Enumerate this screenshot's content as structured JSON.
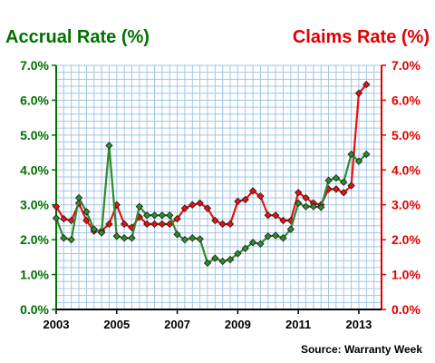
{
  "chart_data": {
    "type": "line",
    "title_left": "Accrual Rate (%)",
    "title_right": "Claims Rate (%)",
    "source": "Source: Warranty Week",
    "x_tick_labels": [
      "2003",
      "2005",
      "2007",
      "2009",
      "2011",
      "2013"
    ],
    "x_ticks": [
      2003,
      2005,
      2007,
      2009,
      2011,
      2013
    ],
    "xlim": [
      2003,
      2013.75
    ],
    "y_tick_labels": [
      "0.0%",
      "1.0%",
      "2.0%",
      "3.0%",
      "4.0%",
      "5.0%",
      "6.0%",
      "7.0%"
    ],
    "y_ticks": [
      0,
      1,
      2,
      3,
      4,
      5,
      6,
      7
    ],
    "ylim": [
      0,
      7
    ],
    "grid": true,
    "colors": {
      "accrual": "#2e8b2e",
      "claims": "#e81010",
      "left_axis": "#007000",
      "right_axis": "#e00000",
      "grid": "#9fc6e8"
    },
    "x": [
      2003.0,
      2003.25,
      2003.5,
      2003.75,
      2004.0,
      2004.25,
      2004.5,
      2004.75,
      2005.0,
      2005.25,
      2005.5,
      2005.75,
      2006.0,
      2006.25,
      2006.5,
      2006.75,
      2007.0,
      2007.25,
      2007.5,
      2007.75,
      2008.0,
      2008.25,
      2008.5,
      2008.75,
      2009.0,
      2009.25,
      2009.5,
      2009.75,
      2010.0,
      2010.25,
      2010.5,
      2010.75,
      2011.0,
      2011.25,
      2011.5,
      2011.75,
      2012.0,
      2012.25,
      2012.5,
      2012.75,
      2013.0,
      2013.25
    ],
    "series": [
      {
        "name": "Accrual Rate (%)",
        "values": [
          2.62,
          2.05,
          2.0,
          3.2,
          2.8,
          2.3,
          2.2,
          4.7,
          2.1,
          2.05,
          2.05,
          2.95,
          2.7,
          2.7,
          2.7,
          2.7,
          2.15,
          2.0,
          2.05,
          2.02,
          1.33,
          1.47,
          1.38,
          1.43,
          1.6,
          1.75,
          1.92,
          1.88,
          2.1,
          2.12,
          2.05,
          2.3,
          3.05,
          2.95,
          2.95,
          2.93,
          3.7,
          3.77,
          3.65,
          4.45,
          4.25,
          4.45
        ]
      },
      {
        "name": "Claims Rate (%)",
        "values": [
          2.95,
          2.6,
          2.55,
          3.05,
          2.55,
          2.25,
          2.25,
          2.45,
          3.0,
          2.45,
          2.35,
          2.65,
          2.45,
          2.45,
          2.45,
          2.45,
          2.6,
          2.9,
          3.0,
          3.05,
          2.9,
          2.55,
          2.45,
          2.45,
          3.1,
          3.15,
          3.4,
          3.25,
          2.7,
          2.7,
          2.55,
          2.55,
          3.35,
          3.2,
          3.05,
          3.0,
          3.45,
          3.45,
          3.35,
          3.55,
          6.2,
          6.45
        ]
      }
    ]
  }
}
